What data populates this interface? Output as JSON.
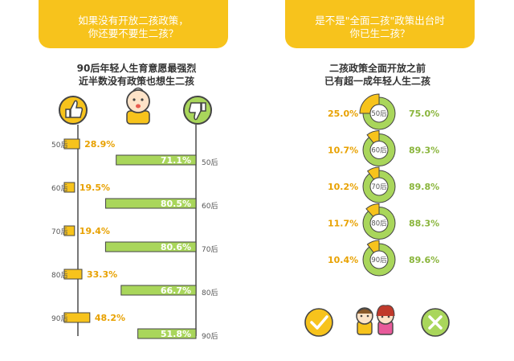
{
  "left_panel": {
    "header_lines": [
      "如果没有开放二孩政策，",
      "你还要不要生二孩？"
    ],
    "subtitle_lines": [
      "90后年轻人生育意愿最强烈",
      "近半数没有政策也想生二孩"
    ],
    "icon_yes": "thumbs-up-icon",
    "icon_baby": "baby-face-icon",
    "icon_no": "thumbs-down-icon"
  },
  "right_panel": {
    "header_lines": [
      "是不是\"全面二孩\"政策出台时",
      "你已生二孩？"
    ],
    "subtitle_lines": [
      "二孩政策全面开放之前",
      "已有超一成年轻人生二孩"
    ],
    "icon_yes": "check-icon",
    "icon_couple": "couple-icon",
    "icon_no": "cross-icon"
  },
  "colors": {
    "yellow": "#f7c31c",
    "green": "#a9d65b",
    "orange_text": "#e8a100",
    "green_text": "#8ab53c"
  },
  "chart_data": [
    {
      "type": "bar",
      "title": "90后年轻人生育意愿最强烈",
      "categories": [
        "50后",
        "60后",
        "70后",
        "80后",
        "90后"
      ],
      "series": [
        {
          "values": [
            28.9,
            19.5,
            19.4,
            33.3,
            48.2
          ]
        },
        {
          "values": [
            71.1,
            80.5,
            80.6,
            66.7,
            51.8
          ]
        }
      ],
      "labels_yes": [
        "28.9%",
        "19.5%",
        "19.4%",
        "33.3%",
        "48.2%"
      ],
      "labels_no": [
        "71.1%",
        "80.5%",
        "80.6%",
        "66.7%",
        "51.8%"
      ],
      "ylim": [
        0,
        100
      ]
    },
    {
      "type": "pie",
      "title": "二孩政策全面开放之前",
      "categories": [
        "50后",
        "60后",
        "70后",
        "80后",
        "90后"
      ],
      "series": [
        {
          "values": [
            25.0,
            10.7,
            10.2,
            11.7,
            10.4
          ]
        },
        {
          "values": [
            75.0,
            89.3,
            89.8,
            88.3,
            89.6
          ]
        }
      ],
      "labels_yes": [
        "25.0%",
        "10.7%",
        "10.2%",
        "11.7%",
        "10.4%"
      ],
      "labels_no": [
        "75.0%",
        "89.3%",
        "89.8%",
        "88.3%",
        "89.6%"
      ]
    }
  ]
}
